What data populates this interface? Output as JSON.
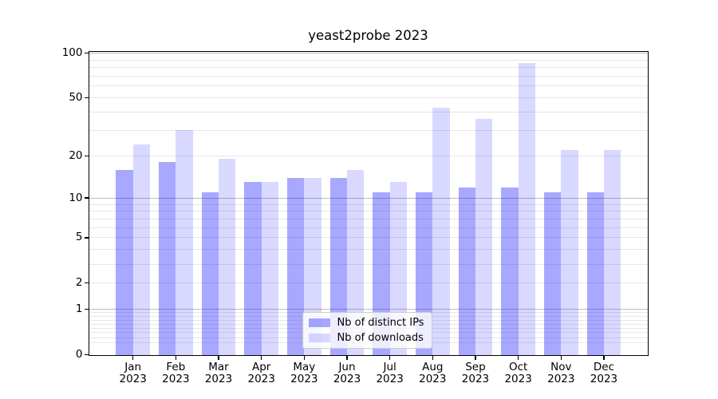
{
  "title": "yeast2probe 2023",
  "colors": {
    "bar_ips": "rgba(0,0,255,0.34)",
    "bar_downloads": "rgba(0,0,255,0.15)",
    "bar_ips_hex": "#a8a8ff",
    "bar_downloads_hex": "#d9d9ff",
    "grid_major": "#bdbdbd",
    "grid_minor": "#e7e7e7",
    "axis": "#000000"
  },
  "chart_data": {
    "type": "bar",
    "title": "yeast2probe 2023",
    "categories": [
      "Jan",
      "Feb",
      "Mar",
      "Apr",
      "May",
      "Jun",
      "Jul",
      "Aug",
      "Sep",
      "Oct",
      "Nov",
      "Dec"
    ],
    "category_year": "2023",
    "series": [
      {
        "name": "Nb of distinct IPs",
        "values": [
          16,
          18,
          11,
          13,
          14,
          14,
          11,
          11,
          12,
          12,
          11,
          11
        ]
      },
      {
        "name": "Nb of downloads",
        "values": [
          24,
          30,
          19,
          13,
          14,
          16,
          13,
          43,
          36,
          86,
          22,
          22
        ]
      }
    ],
    "xlabel": "",
    "ylabel": "",
    "yscale": "log1p",
    "yticks": [
      0,
      1,
      2,
      5,
      10,
      20,
      50,
      100
    ],
    "ylim": [
      0,
      101.6
    ],
    "grid": "both",
    "legend_position": "lower center"
  }
}
